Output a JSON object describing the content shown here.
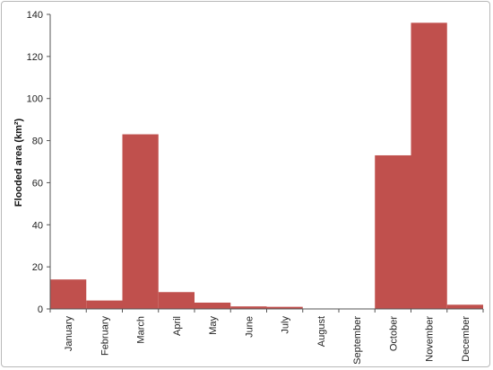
{
  "chart_data": {
    "type": "bar",
    "title": "",
    "xlabel": "",
    "ylabel": "Flooded area (km²)",
    "ylim": [
      0,
      140
    ],
    "yticks": [
      0,
      20,
      40,
      60,
      80,
      100,
      120,
      140
    ],
    "grid": false,
    "legend": "none",
    "bar_color": "#c0504d",
    "categories": [
      "January",
      "February",
      "March",
      "April",
      "May",
      "June",
      "July",
      "August",
      "September",
      "October",
      "November",
      "December"
    ],
    "series": [
      {
        "values": [
          14,
          4,
          83,
          8,
          3,
          1.2,
          1,
          0,
          0,
          73,
          136,
          2
        ]
      }
    ]
  }
}
